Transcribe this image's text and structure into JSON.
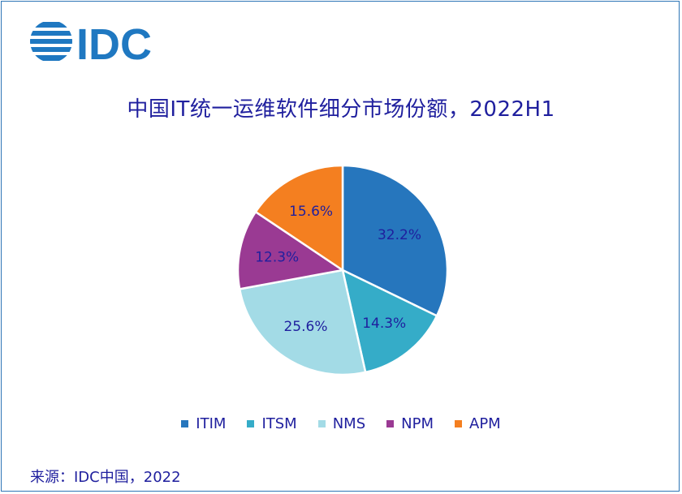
{
  "logo": {
    "text": "IDC"
  },
  "chart_data": {
    "type": "pie",
    "title": "中国IT统一运维软件细分市场份额，2022H1",
    "categories": [
      "ITIM",
      "ITSM",
      "NMS",
      "NPM",
      "APM"
    ],
    "values": [
      32.2,
      14.3,
      25.6,
      12.3,
      15.6
    ],
    "labels": [
      "32.2%",
      "14.3%",
      "25.6%",
      "12.3%",
      "15.6%"
    ],
    "colors": [
      "#2676bd",
      "#35acc8",
      "#a3dbe6",
      "#9a3a93",
      "#f47f20"
    ],
    "legend_position": "bottom"
  },
  "source": "来源：IDC中国，2022"
}
